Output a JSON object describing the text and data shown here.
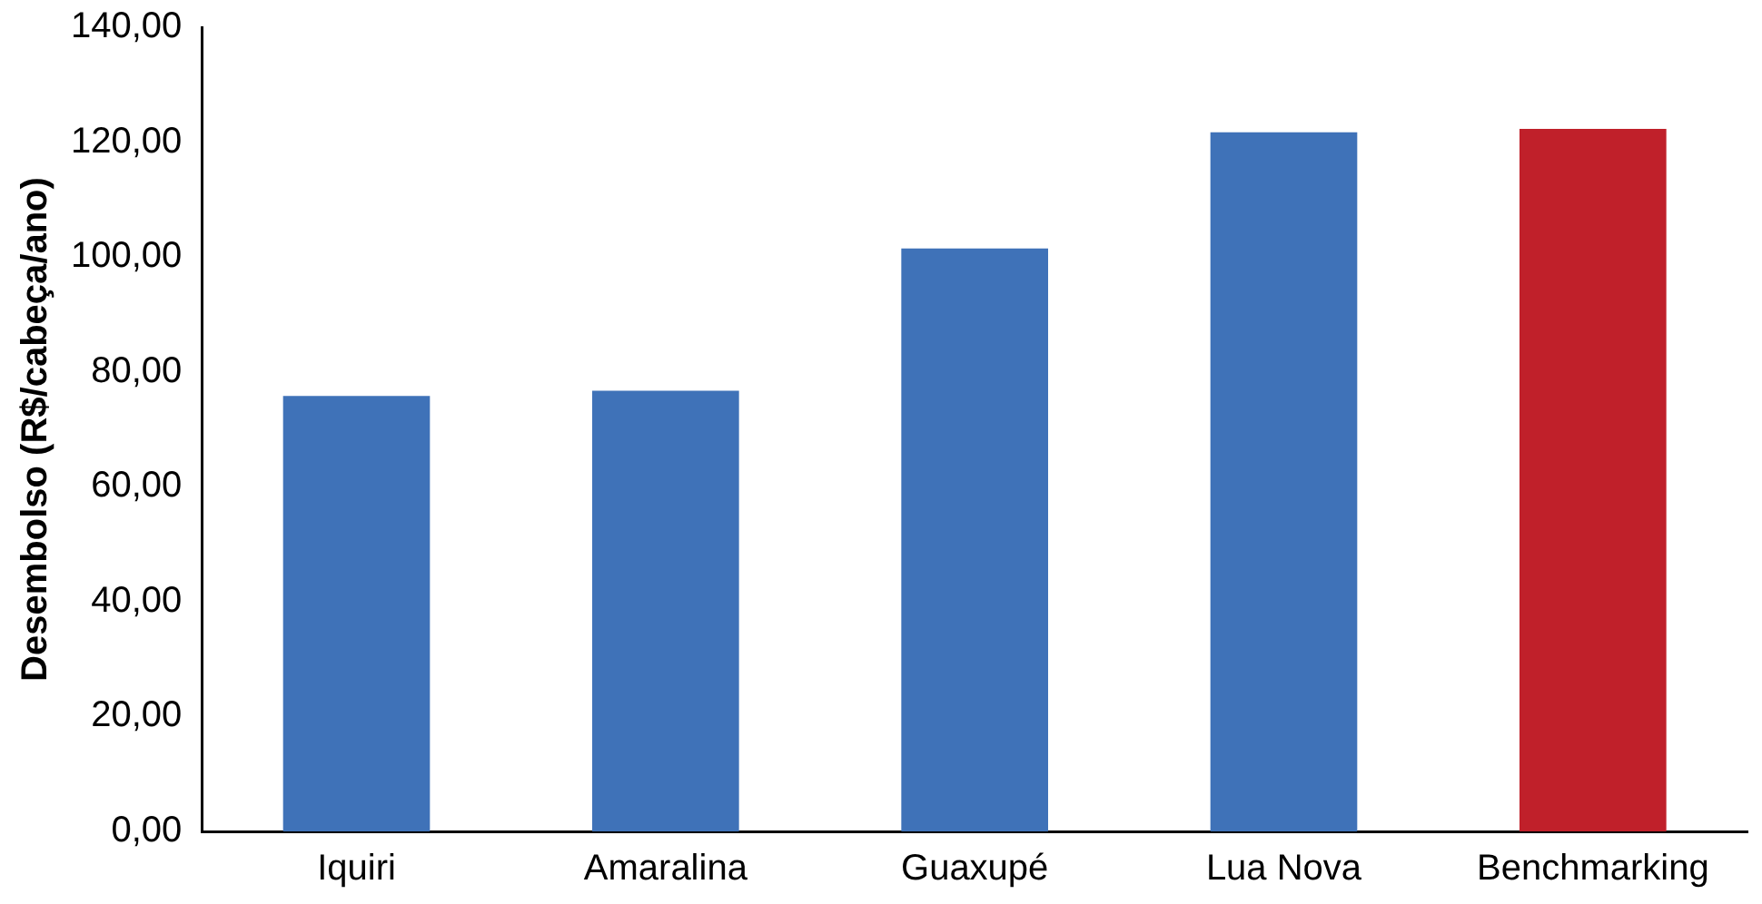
{
  "chart_data": {
    "type": "bar",
    "ylabel": "Desembolso (R$/cabeça/ano)",
    "categories": [
      "Iquiri",
      "Amaralina",
      "Guaxupé",
      "Lua Nova",
      "Benchmarking"
    ],
    "values": [
      75.8,
      76.7,
      101.5,
      121.7,
      122.3
    ],
    "colors": [
      "#3f72b8",
      "#3f72b8",
      "#3f72b8",
      "#3f72b8",
      "#c0202a"
    ],
    "ylim": [
      0,
      140
    ],
    "yticks": [
      {
        "value": 0,
        "label": "0,00"
      },
      {
        "value": 20,
        "label": "20,00"
      },
      {
        "value": 40,
        "label": "40,00"
      },
      {
        "value": 60,
        "label": "60,00"
      },
      {
        "value": 80,
        "label": "80,00"
      },
      {
        "value": 100,
        "label": "100,00"
      },
      {
        "value": 120,
        "label": "120,00"
      },
      {
        "value": 140,
        "label": "140,00"
      }
    ],
    "grid": false,
    "legend": false
  }
}
